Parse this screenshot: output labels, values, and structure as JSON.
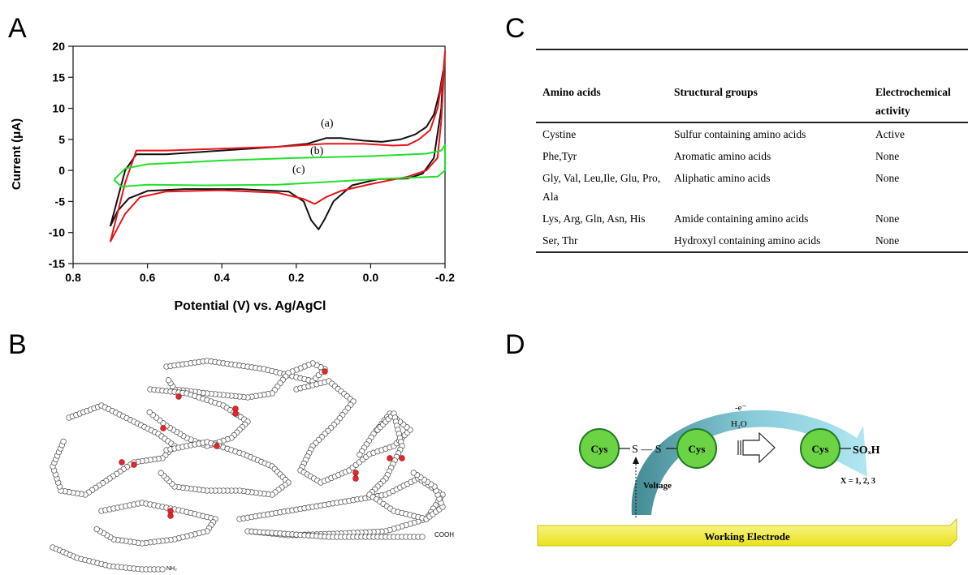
{
  "panels": {
    "a": "A",
    "b": "B",
    "c": "C",
    "d": "D"
  },
  "chart_data": {
    "type": "line",
    "xlabel": "Potential (V) vs. Ag/AgCl",
    "ylabel": "Current (μA)",
    "xlim": [
      0.8,
      -0.2
    ],
    "ylim": [
      -15,
      20
    ],
    "x_ticks": [
      "0.8",
      "0.6",
      "0.4",
      "0.2",
      "0.0",
      "-0.2"
    ],
    "y_ticks": [
      "20",
      "15",
      "10",
      "5",
      "0",
      "-5",
      "-10",
      "-15"
    ],
    "x_axis_reversed": true,
    "grid": false,
    "annotations": [
      "(a)",
      "(b)",
      "(c)"
    ],
    "series": [
      {
        "color": "#111111",
        "anodic": [
          [
            0.7,
            -9
          ],
          [
            0.66,
            0
          ],
          [
            0.63,
            2.6
          ],
          [
            0.55,
            2.6
          ],
          [
            0.4,
            3.2
          ],
          [
            0.25,
            3.8
          ],
          [
            0.17,
            4.3
          ],
          [
            0.12,
            5.2
          ],
          [
            0.08,
            5.2
          ],
          [
            0.02,
            4.8
          ],
          [
            -0.03,
            4.6
          ],
          [
            -0.08,
            5.0
          ],
          [
            -0.12,
            5.8
          ],
          [
            -0.15,
            7.0
          ],
          [
            -0.17,
            9.0
          ],
          [
            -0.185,
            12.5
          ],
          [
            -0.195,
            16.0
          ]
        ],
        "cathodic": [
          [
            -0.195,
            16.0
          ],
          [
            -0.19,
            10
          ],
          [
            -0.17,
            2
          ],
          [
            -0.14,
            -0.5
          ],
          [
            -0.1,
            -1.3
          ],
          [
            -0.02,
            -1.4
          ],
          [
            0.05,
            -2.4
          ],
          [
            0.1,
            -5
          ],
          [
            0.125,
            -8
          ],
          [
            0.14,
            -9.5
          ],
          [
            0.16,
            -8
          ],
          [
            0.18,
            -5
          ],
          [
            0.22,
            -3.4
          ],
          [
            0.35,
            -3
          ],
          [
            0.5,
            -3
          ],
          [
            0.6,
            -3.3
          ],
          [
            0.65,
            -4.5
          ],
          [
            0.68,
            -6.5
          ],
          [
            0.7,
            -9
          ]
        ]
      },
      {
        "color": "#e8141a",
        "anodic": [
          [
            0.7,
            -11.5
          ],
          [
            0.66,
            -2
          ],
          [
            0.63,
            3.2
          ],
          [
            0.55,
            3.2
          ],
          [
            0.4,
            3.5
          ],
          [
            0.25,
            3.8
          ],
          [
            0.12,
            4.3
          ],
          [
            0.02,
            4.3
          ],
          [
            -0.06,
            4.0
          ],
          [
            -0.1,
            4.1
          ],
          [
            -0.13,
            5.0
          ],
          [
            -0.16,
            6.5
          ],
          [
            -0.18,
            10
          ],
          [
            -0.195,
            15.5
          ],
          [
            -0.2,
            19.2
          ]
        ],
        "cathodic": [
          [
            -0.2,
            19.2
          ],
          [
            -0.19,
            8
          ],
          [
            -0.18,
            2
          ],
          [
            -0.15,
            0
          ],
          [
            -0.1,
            -1
          ],
          [
            0.0,
            -2.2
          ],
          [
            0.08,
            -3.3
          ],
          [
            0.12,
            -4.3
          ],
          [
            0.15,
            -5.4
          ],
          [
            0.18,
            -4.6
          ],
          [
            0.25,
            -3.6
          ],
          [
            0.4,
            -3.2
          ],
          [
            0.55,
            -3.4
          ],
          [
            0.62,
            -4.3
          ],
          [
            0.66,
            -7
          ],
          [
            0.7,
            -11.5
          ]
        ]
      },
      {
        "color": "#22e02a",
        "anodic": [
          [
            0.69,
            -1.5
          ],
          [
            0.66,
            0.3
          ],
          [
            0.6,
            1.0
          ],
          [
            0.4,
            1.6
          ],
          [
            0.2,
            2.0
          ],
          [
            0.0,
            2.3
          ],
          [
            -0.15,
            2.7
          ],
          [
            -0.19,
            3.2
          ],
          [
            -0.2,
            4.1
          ]
        ],
        "cathodic": [
          [
            -0.2,
            4.1
          ],
          [
            -0.2,
            0
          ],
          [
            -0.18,
            -1.0
          ],
          [
            -0.05,
            -1.3
          ],
          [
            0.1,
            -1.8
          ],
          [
            0.25,
            -2.3
          ],
          [
            0.45,
            -2.4
          ],
          [
            0.6,
            -2.3
          ],
          [
            0.67,
            -2.6
          ],
          [
            0.69,
            -1.5
          ]
        ]
      }
    ]
  },
  "table": {
    "headers": [
      "Amino acids",
      "Structural groups",
      "Electrochemical activity"
    ],
    "rows": [
      [
        "Cystine",
        "Sulfur containing amino acids",
        "Active"
      ],
      [
        "Phe,Tyr",
        "Aromatic amino acids",
        "None"
      ],
      [
        "Gly, Val, Leu,Ile, Glu, Pro, Ala",
        "Aliphatic amino acids",
        "None"
      ],
      [
        "Lys, Arg, Gln, Asn, His",
        "Amide containing amino acids",
        "None"
      ],
      [
        "Ser, Thr",
        "Hydroxyl containing amino acids",
        "None"
      ]
    ]
  },
  "protein": {
    "c_terminus": "COOH",
    "n_terminus": "NH₂"
  },
  "mechanism": {
    "cys": "Cys",
    "bridge": "S — S",
    "oxidant": "H₂O",
    "electron": "-e⁻",
    "product": "SOₓH",
    "voltage": "Voltage",
    "x_values": "X = 1, 2, 3",
    "electrode": "Working Electrode",
    "colors": {
      "cys_fill": "#6cd444",
      "arrow": "#8fd4e3",
      "electrode": "#f4ef48"
    }
  }
}
